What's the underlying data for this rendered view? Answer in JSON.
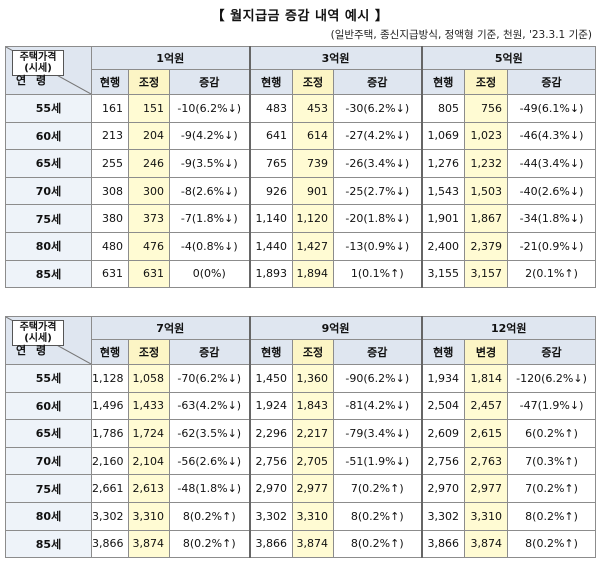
{
  "title": "【 월지급금 증감 내역 예시 】",
  "subtitle": "(일반주택, 종신지급방식, 정액형 기준, 천원, '23.3.1 기준)",
  "corner": {
    "price_line1": "주택가격",
    "price_line2": "(시세)",
    "age": "연 령"
  },
  "tables": [
    {
      "groups": [
        {
          "name": "1억원",
          "cols": [
            "현행",
            "조정",
            "증감"
          ]
        },
        {
          "name": "3억원",
          "cols": [
            "현행",
            "조정",
            "증감"
          ]
        },
        {
          "name": "5억원",
          "cols": [
            "현행",
            "조정",
            "증감"
          ]
        }
      ],
      "rows": [
        {
          "age": "55세",
          "cells": [
            "161",
            "151",
            "-10(6.2%↓)",
            "483",
            "453",
            "-30(6.2%↓)",
            "805",
            "756",
            "-49(6.1%↓)"
          ]
        },
        {
          "age": "60세",
          "cells": [
            "213",
            "204",
            "-9(4.2%↓)",
            "641",
            "614",
            "-27(4.2%↓)",
            "1,069",
            "1,023",
            "-46(4.3%↓)"
          ]
        },
        {
          "age": "65세",
          "cells": [
            "255",
            "246",
            "-9(3.5%↓)",
            "765",
            "739",
            "-26(3.4%↓)",
            "1,276",
            "1,232",
            "-44(3.4%↓)"
          ]
        },
        {
          "age": "70세",
          "cells": [
            "308",
            "300",
            "-8(2.6%↓)",
            "926",
            "901",
            "-25(2.7%↓)",
            "1,543",
            "1,503",
            "-40(2.6%↓)"
          ]
        },
        {
          "age": "75세",
          "cells": [
            "380",
            "373",
            "-7(1.8%↓)",
            "1,140",
            "1,120",
            "-20(1.8%↓)",
            "1,901",
            "1,867",
            "-34(1.8%↓)"
          ]
        },
        {
          "age": "80세",
          "cells": [
            "480",
            "476",
            "-4(0.8%↓)",
            "1,440",
            "1,427",
            "-13(0.9%↓)",
            "2,400",
            "2,379",
            "-21(0.9%↓)"
          ]
        },
        {
          "age": "85세",
          "cells": [
            "631",
            "631",
            "0(0%)",
            "1,893",
            "1,894",
            "1(0.1%↑)",
            "3,155",
            "3,157",
            "2(0.1%↑)"
          ]
        }
      ]
    },
    {
      "groups": [
        {
          "name": "7억원",
          "cols": [
            "현행",
            "조정",
            "증감"
          ]
        },
        {
          "name": "9억원",
          "cols": [
            "현행",
            "조정",
            "증감"
          ]
        },
        {
          "name": "12억원",
          "cols": [
            "현행",
            "변경",
            "증감"
          ]
        }
      ],
      "rows": [
        {
          "age": "55세",
          "cells": [
            "1,128",
            "1,058",
            "-70(6.2%↓)",
            "1,450",
            "1,360",
            "-90(6.2%↓)",
            "1,934",
            "1,814",
            "-120(6.2%↓)"
          ]
        },
        {
          "age": "60세",
          "cells": [
            "1,496",
            "1,433",
            "-63(4.2%↓)",
            "1,924",
            "1,843",
            "-81(4.2%↓)",
            "2,504",
            "2,457",
            "-47(1.9%↓)"
          ]
        },
        {
          "age": "65세",
          "cells": [
            "1,786",
            "1,724",
            "-62(3.5%↓)",
            "2,296",
            "2,217",
            "-79(3.4%↓)",
            "2,609",
            "2,615",
            "6(0.2%↑)"
          ]
        },
        {
          "age": "70세",
          "cells": [
            "2,160",
            "2,104",
            "-56(2.6%↓)",
            "2,756",
            "2,705",
            "-51(1.9%↓)",
            "2,756",
            "2,763",
            "7(0.3%↑)"
          ]
        },
        {
          "age": "75세",
          "cells": [
            "2,661",
            "2,613",
            "-48(1.8%↓)",
            "2,970",
            "2,977",
            "7(0.2%↑)",
            "2,970",
            "2,977",
            "7(0.2%↑)"
          ]
        },
        {
          "age": "80세",
          "cells": [
            "3,302",
            "3,310",
            "8(0.2%↑)",
            "3,302",
            "3,310",
            "8(0.2%↑)",
            "3,302",
            "3,310",
            "8(0.2%↑)"
          ]
        },
        {
          "age": "85세",
          "cells": [
            "3,866",
            "3,874",
            "8(0.2%↑)",
            "3,866",
            "3,874",
            "8(0.2%↑)",
            "3,866",
            "3,874",
            "8(0.2%↑)"
          ]
        }
      ]
    }
  ]
}
